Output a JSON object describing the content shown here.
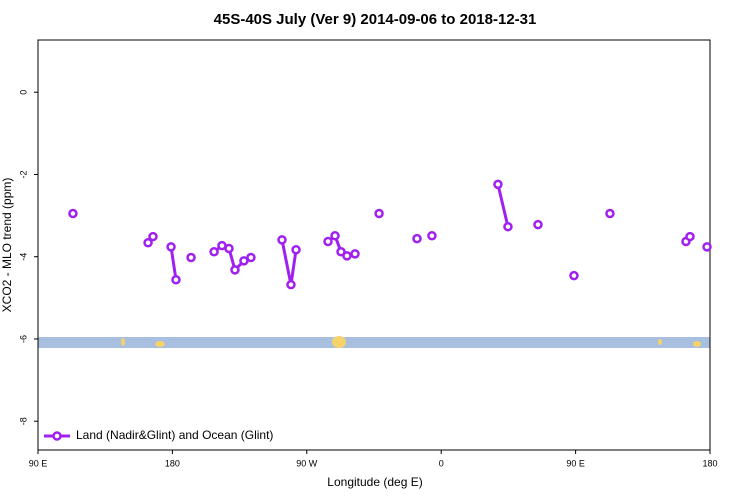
{
  "chart_data": {
    "type": "line",
    "title": "45S-40S July (Ver 9)   2014-09-06 to 2018-12-31",
    "x_label": "Longitude (deg E)",
    "y_label": "XCO2 - MLO trend (ppm)",
    "xlim": [
      90,
      540
    ],
    "xticks": [
      {
        "value": 90,
        "label": "90 E"
      },
      {
        "value": 180,
        "label": "180"
      },
      {
        "value": 270,
        "label": "90 W"
      },
      {
        "value": 360,
        "label": "0"
      },
      {
        "value": 450,
        "label": "90 E"
      },
      {
        "value": 540,
        "label": "180"
      }
    ],
    "ylim": [
      -8.7,
      1.27
    ],
    "yticks": [
      0,
      -2,
      -4,
      -6,
      -8
    ],
    "legend": "bottom-left",
    "series": [
      {
        "name": "Land (Nadir&Glint) and Ocean (Glint)",
        "color": "#a020f0",
        "x": [
          113.4,
          null,
          163.7,
          167.0,
          null,
          179.1,
          182.4,
          null,
          192.5,
          null,
          207.9,
          213.2,
          217.9,
          221.9,
          227.9,
          232.6,
          null,
          253.4,
          259.4,
          262.8,
          null,
          284.2,
          288.9,
          292.9,
          296.9,
          302.3,
          null,
          318.4,
          null,
          343.8,
          null,
          353.8,
          null,
          398.0,
          404.7,
          null,
          424.8,
          null,
          448.9,
          null,
          473.0,
          null,
          523.9,
          526.6,
          null,
          538.0
        ],
        "values": [
          -2.95,
          null,
          -3.66,
          -3.51,
          null,
          -3.76,
          -4.56,
          null,
          -4.02,
          null,
          -3.88,
          -3.73,
          -3.8,
          -4.32,
          -4.1,
          -4.02,
          null,
          -3.59,
          -4.68,
          -3.83,
          null,
          -3.63,
          -3.49,
          -3.88,
          -3.98,
          -3.93,
          null,
          -2.95,
          null,
          -3.56,
          null,
          -3.49,
          null,
          -2.24,
          -3.27,
          null,
          -3.22,
          null,
          -4.46,
          null,
          -2.95,
          null,
          -3.63,
          -3.51,
          null,
          -3.76
        ]
      }
    ]
  }
}
